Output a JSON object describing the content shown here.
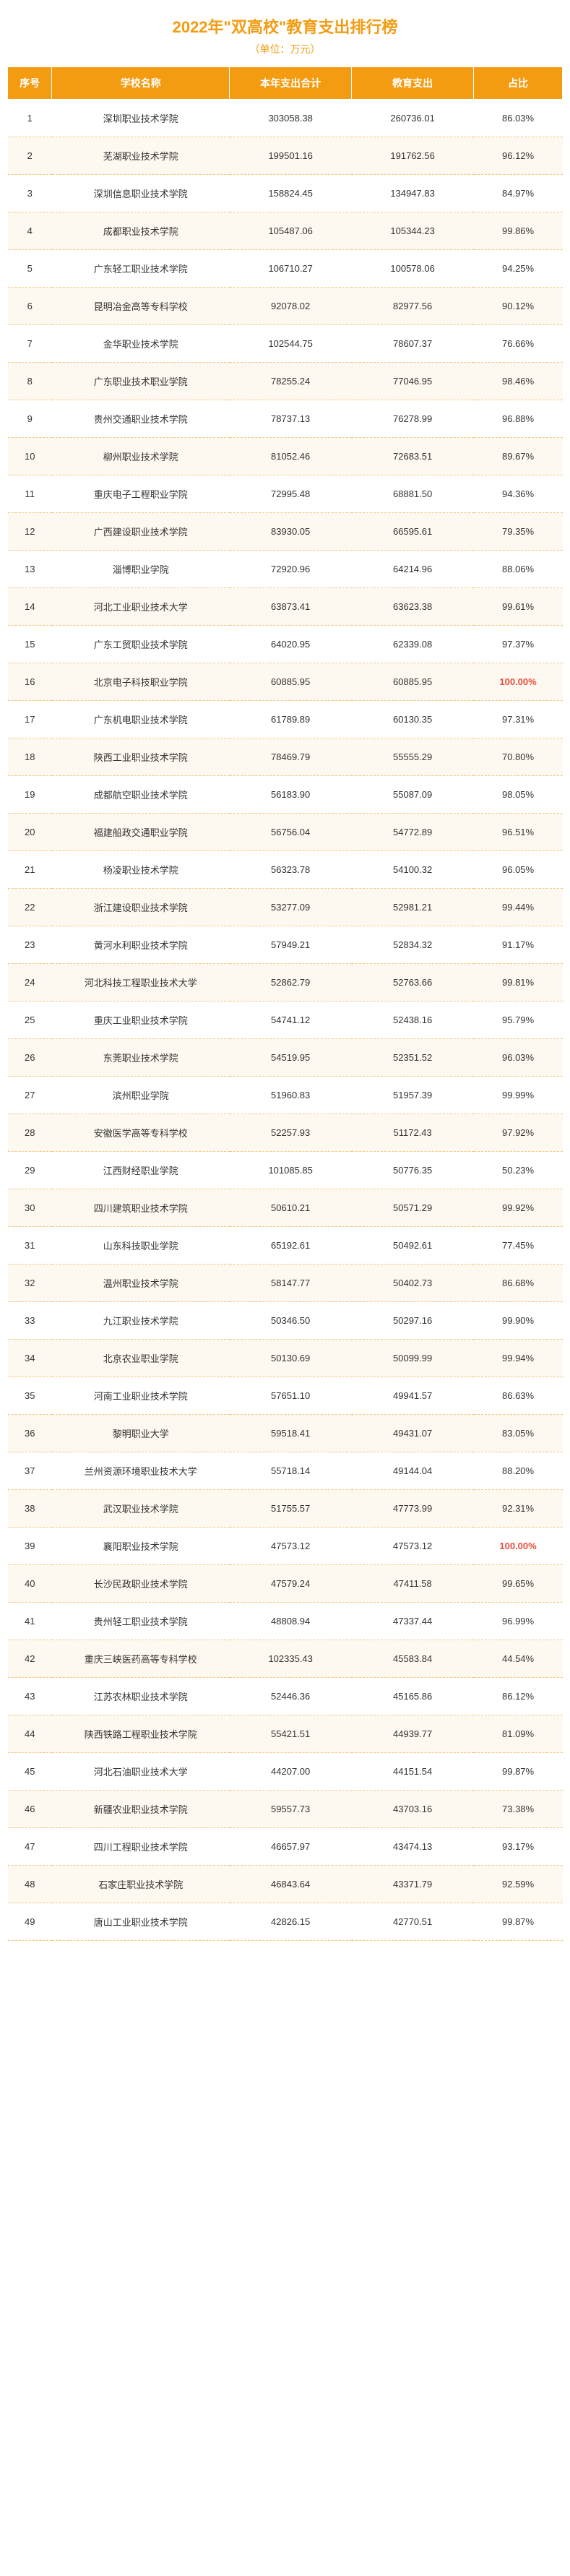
{
  "title": "2022年\"双高校\"教育支出排行榜",
  "subtitle": "（单位：万元）",
  "columns": [
    "序号",
    "学校名称",
    "本年支出合计",
    "教育支出",
    "占比"
  ],
  "highlight_color": "#e74c3c",
  "rows": [
    {
      "idx": "1",
      "name": "深圳职业技术学院",
      "total": "303058.38",
      "edu": "260736.01",
      "pct": "86.03%",
      "hl": false
    },
    {
      "idx": "2",
      "name": "芜湖职业技术学院",
      "total": "199501.16",
      "edu": "191762.56",
      "pct": "96.12%",
      "hl": false
    },
    {
      "idx": "3",
      "name": "深圳信息职业技术学院",
      "total": "158824.45",
      "edu": "134947.83",
      "pct": "84.97%",
      "hl": false
    },
    {
      "idx": "4",
      "name": "成都职业技术学院",
      "total": "105487.06",
      "edu": "105344.23",
      "pct": "99.86%",
      "hl": false
    },
    {
      "idx": "5",
      "name": "广东轻工职业技术学院",
      "total": "106710.27",
      "edu": "100578.06",
      "pct": "94.25%",
      "hl": false
    },
    {
      "idx": "6",
      "name": "昆明冶金高等专科学校",
      "total": "92078.02",
      "edu": "82977.56",
      "pct": "90.12%",
      "hl": false
    },
    {
      "idx": "7",
      "name": "金华职业技术学院",
      "total": "102544.75",
      "edu": "78607.37",
      "pct": "76.66%",
      "hl": false
    },
    {
      "idx": "8",
      "name": "广东职业技术职业学院",
      "total": "78255.24",
      "edu": "77046.95",
      "pct": "98.46%",
      "hl": false
    },
    {
      "idx": "9",
      "name": "贵州交通职业技术学院",
      "total": "78737.13",
      "edu": "76278.99",
      "pct": "96.88%",
      "hl": false
    },
    {
      "idx": "10",
      "name": "柳州职业技术学院",
      "total": "81052.46",
      "edu": "72683.51",
      "pct": "89.67%",
      "hl": false
    },
    {
      "idx": "11",
      "name": "重庆电子工程职业学院",
      "total": "72995.48",
      "edu": "68881.50",
      "pct": "94.36%",
      "hl": false
    },
    {
      "idx": "12",
      "name": "广西建设职业技术学院",
      "total": "83930.05",
      "edu": "66595.61",
      "pct": "79.35%",
      "hl": false
    },
    {
      "idx": "13",
      "name": "淄博职业学院",
      "total": "72920.96",
      "edu": "64214.96",
      "pct": "88.06%",
      "hl": false
    },
    {
      "idx": "14",
      "name": "河北工业职业技术大学",
      "total": "63873.41",
      "edu": "63623.38",
      "pct": "99.61%",
      "hl": false
    },
    {
      "idx": "15",
      "name": "广东工贸职业技术学院",
      "total": "64020.95",
      "edu": "62339.08",
      "pct": "97.37%",
      "hl": false
    },
    {
      "idx": "16",
      "name": "北京电子科技职业学院",
      "total": "60885.95",
      "edu": "60885.95",
      "pct": "100.00%",
      "hl": true
    },
    {
      "idx": "17",
      "name": "广东机电职业技术学院",
      "total": "61789.89",
      "edu": "60130.35",
      "pct": "97.31%",
      "hl": false
    },
    {
      "idx": "18",
      "name": "陕西工业职业技术学院",
      "total": "78469.79",
      "edu": "55555.29",
      "pct": "70.80%",
      "hl": false
    },
    {
      "idx": "19",
      "name": "成都航空职业技术学院",
      "total": "56183.90",
      "edu": "55087.09",
      "pct": "98.05%",
      "hl": false
    },
    {
      "idx": "20",
      "name": "福建船政交通职业学院",
      "total": "56756.04",
      "edu": "54772.89",
      "pct": "96.51%",
      "hl": false
    },
    {
      "idx": "21",
      "name": "杨凌职业技术学院",
      "total": "56323.78",
      "edu": "54100.32",
      "pct": "96.05%",
      "hl": false
    },
    {
      "idx": "22",
      "name": "浙江建设职业技术学院",
      "total": "53277.09",
      "edu": "52981.21",
      "pct": "99.44%",
      "hl": false
    },
    {
      "idx": "23",
      "name": "黄河水利职业技术学院",
      "total": "57949.21",
      "edu": "52834.32",
      "pct": "91.17%",
      "hl": false
    },
    {
      "idx": "24",
      "name": "河北科技工程职业技术大学",
      "total": "52862.79",
      "edu": "52763.66",
      "pct": "99.81%",
      "hl": false
    },
    {
      "idx": "25",
      "name": "重庆工业职业技术学院",
      "total": "54741.12",
      "edu": "52438.16",
      "pct": "95.79%",
      "hl": false
    },
    {
      "idx": "26",
      "name": "东莞职业技术学院",
      "total": "54519.95",
      "edu": "52351.52",
      "pct": "96.03%",
      "hl": false
    },
    {
      "idx": "27",
      "name": "滨州职业学院",
      "total": "51960.83",
      "edu": "51957.39",
      "pct": "99.99%",
      "hl": false
    },
    {
      "idx": "28",
      "name": "安徽医学高等专科学校",
      "total": "52257.93",
      "edu": "51172.43",
      "pct": "97.92%",
      "hl": false
    },
    {
      "idx": "29",
      "name": "江西财经职业学院",
      "total": "101085.85",
      "edu": "50776.35",
      "pct": "50.23%",
      "hl": false
    },
    {
      "idx": "30",
      "name": "四川建筑职业技术学院",
      "total": "50610.21",
      "edu": "50571.29",
      "pct": "99.92%",
      "hl": false
    },
    {
      "idx": "31",
      "name": "山东科技职业学院",
      "total": "65192.61",
      "edu": "50492.61",
      "pct": "77.45%",
      "hl": false
    },
    {
      "idx": "32",
      "name": "温州职业技术学院",
      "total": "58147.77",
      "edu": "50402.73",
      "pct": "86.68%",
      "hl": false
    },
    {
      "idx": "33",
      "name": "九江职业技术学院",
      "total": "50346.50",
      "edu": "50297.16",
      "pct": "99.90%",
      "hl": false
    },
    {
      "idx": "34",
      "name": "北京农业职业学院",
      "total": "50130.69",
      "edu": "50099.99",
      "pct": "99.94%",
      "hl": false
    },
    {
      "idx": "35",
      "name": "河南工业职业技术学院",
      "total": "57651.10",
      "edu": "49941.57",
      "pct": "86.63%",
      "hl": false
    },
    {
      "idx": "36",
      "name": "黎明职业大学",
      "total": "59518.41",
      "edu": "49431.07",
      "pct": "83.05%",
      "hl": false
    },
    {
      "idx": "37",
      "name": "兰州资源环境职业技术大学",
      "total": "55718.14",
      "edu": "49144.04",
      "pct": "88.20%",
      "hl": false
    },
    {
      "idx": "38",
      "name": "武汉职业技术学院",
      "total": "51755.57",
      "edu": "47773.99",
      "pct": "92.31%",
      "hl": false
    },
    {
      "idx": "39",
      "name": "襄阳职业技术学院",
      "total": "47573.12",
      "edu": "47573.12",
      "pct": "100.00%",
      "hl": true
    },
    {
      "idx": "40",
      "name": "长沙民政职业技术学院",
      "total": "47579.24",
      "edu": "47411.58",
      "pct": "99.65%",
      "hl": false
    },
    {
      "idx": "41",
      "name": "贵州轻工职业技术学院",
      "total": "48808.94",
      "edu": "47337.44",
      "pct": "96.99%",
      "hl": false
    },
    {
      "idx": "42",
      "name": "重庆三峡医药高等专科学校",
      "total": "102335.43",
      "edu": "45583.84",
      "pct": "44.54%",
      "hl": false
    },
    {
      "idx": "43",
      "name": "江苏农林职业技术学院",
      "total": "52446.36",
      "edu": "45165.86",
      "pct": "86.12%",
      "hl": false
    },
    {
      "idx": "44",
      "name": "陕西铁路工程职业技术学院",
      "total": "55421.51",
      "edu": "44939.77",
      "pct": "81.09%",
      "hl": false
    },
    {
      "idx": "45",
      "name": "河北石油职业技术大学",
      "total": "44207.00",
      "edu": "44151.54",
      "pct": "99.87%",
      "hl": false
    },
    {
      "idx": "46",
      "name": "新疆农业职业技术学院",
      "total": "59557.73",
      "edu": "43703.16",
      "pct": "73.38%",
      "hl": false
    },
    {
      "idx": "47",
      "name": "四川工程职业技术学院",
      "total": "46657.97",
      "edu": "43474.13",
      "pct": "93.17%",
      "hl": false
    },
    {
      "idx": "48",
      "name": "石家庄职业技术学院",
      "total": "46843.64",
      "edu": "43371.79",
      "pct": "92.59%",
      "hl": false
    },
    {
      "idx": "49",
      "name": "唐山工业职业技术学院",
      "total": "42826.15",
      "edu": "42770.51",
      "pct": "99.87%",
      "hl": false
    }
  ]
}
